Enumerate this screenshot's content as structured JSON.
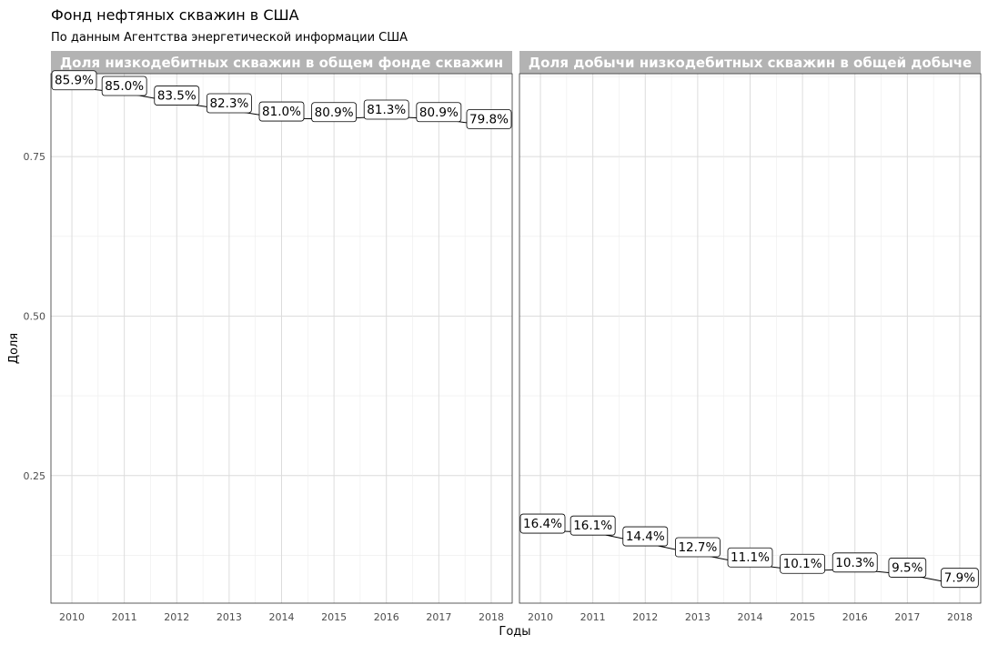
{
  "title": "Фонд нефтяных скважин в США",
  "subtitle": "По данным Агентства энергетической информации США",
  "xlabel": "Годы",
  "ylabel": "Доля",
  "chart_data": {
    "type": "line",
    "x": [
      2010,
      2011,
      2012,
      2013,
      2014,
      2015,
      2016,
      2017,
      2018
    ],
    "ylim": [
      0.05,
      0.88
    ],
    "yticks": [
      0.25,
      0.5,
      0.75
    ],
    "ytick_labels": [
      "0.25",
      "0.50",
      "0.75"
    ],
    "grid": true,
    "facets": [
      {
        "strip": "Доля низкодебитных скважин в общем фонде скважин",
        "values": [
          0.859,
          0.85,
          0.835,
          0.823,
          0.81,
          0.809,
          0.813,
          0.809,
          0.798
        ],
        "labels": [
          "85.9%",
          "85.0%",
          "83.5%",
          "82.3%",
          "81.0%",
          "80.9%",
          "81.3%",
          "80.9%",
          "79.8%"
        ]
      },
      {
        "strip": "Доля добычи низкодебитных скважин в общей добыче",
        "values": [
          0.164,
          0.161,
          0.144,
          0.127,
          0.111,
          0.101,
          0.103,
          0.095,
          0.079
        ],
        "labels": [
          "16.4%",
          "16.1%",
          "14.4%",
          "12.7%",
          "11.1%",
          "10.1%",
          "10.3%",
          "9.5%",
          "7.9%"
        ]
      }
    ]
  }
}
